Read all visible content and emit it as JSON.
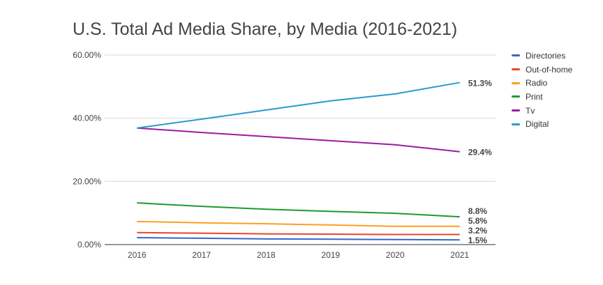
{
  "chart_data": {
    "type": "line",
    "title": "U.S. Total Ad Media Share, by Media (2016-2021)",
    "x": [
      "2016",
      "2017",
      "2018",
      "2019",
      "2020",
      "2021"
    ],
    "ylim": [
      0,
      60
    ],
    "yticks": [
      "0.00%",
      "20.00%",
      "40.00%",
      "60.00%"
    ],
    "ytick_values": [
      0,
      20,
      40,
      60
    ],
    "grid": true,
    "legend_position": "right",
    "series": [
      {
        "name": "Directories",
        "color": "#3366cc",
        "values": [
          2.2,
          2.0,
          1.8,
          1.7,
          1.6,
          1.5
        ],
        "end_label": "1.5%"
      },
      {
        "name": "Out-of-home",
        "color": "#e8452c",
        "values": [
          3.8,
          3.6,
          3.4,
          3.3,
          3.2,
          3.2
        ],
        "end_label": "3.2%"
      },
      {
        "name": "Radio",
        "color": "#ff9e1f",
        "values": [
          7.3,
          6.9,
          6.6,
          6.2,
          5.8,
          5.8
        ],
        "end_label": "5.8%"
      },
      {
        "name": "Print",
        "color": "#1e9a2e",
        "values": [
          13.2,
          12.1,
          11.2,
          10.5,
          9.9,
          8.8
        ],
        "end_label": "8.8%"
      },
      {
        "name": "Tv",
        "color": "#9c1aa3",
        "values": [
          36.9,
          35.5,
          34.2,
          32.9,
          31.6,
          29.4
        ],
        "end_label": "29.4%"
      },
      {
        "name": "Digital",
        "color": "#2a9ad1",
        "values": [
          36.9,
          39.7,
          42.6,
          45.5,
          47.7,
          51.3
        ],
        "end_label": "51.3%"
      }
    ]
  }
}
